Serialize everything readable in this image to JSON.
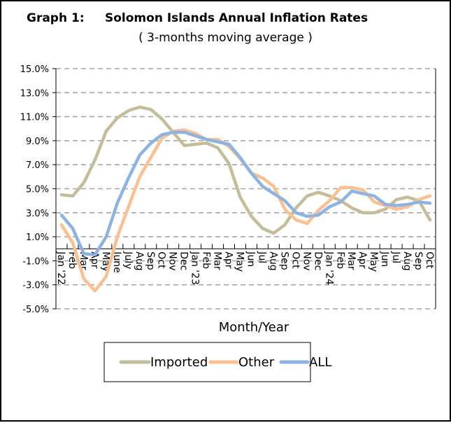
{
  "chart_data": {
    "type": "line",
    "title_prefix": "Graph 1:",
    "title": "Solomon Islands Annual Inflation Rates",
    "subtitle": "( 3-months moving average )",
    "xlabel": "Month/Year",
    "ylabel": "",
    "ylim": [
      -5,
      15
    ],
    "yticks": [
      15,
      13,
      11,
      9,
      7,
      5,
      3,
      1,
      -1,
      -3,
      -5
    ],
    "ytick_labels": [
      "15.0%",
      "13.0%",
      "11.0%",
      "9.0%",
      "7.0%",
      "5.0%",
      "3.0%",
      "1.0%",
      "-1.0%",
      "-3.0%",
      "-5.0%"
    ],
    "grid": "horizontal dashed",
    "legend_placement": "bottom",
    "categories": [
      "Jan '22",
      "Feb",
      "Mar",
      "Apr",
      "May",
      "June",
      "July",
      "Aug",
      "Sep",
      "Oct",
      "Nov",
      "Dec",
      "Jan '23",
      "Feb",
      "Mar",
      "Apr",
      "May",
      "Jun",
      "Jul",
      "Aug",
      "Sep",
      "Oct",
      "Nov",
      "Dec",
      "Jan '24",
      "Feb",
      "Mar",
      "Apr",
      "May",
      "Jun",
      "Jul",
      "Aug",
      "Sep",
      "Oct"
    ],
    "series": [
      {
        "name": "Imported",
        "color": "#c4bd97",
        "values": [
          4.5,
          4.4,
          5.5,
          7.4,
          9.8,
          10.9,
          11.5,
          11.8,
          11.6,
          10.8,
          9.7,
          8.6,
          8.7,
          8.8,
          8.4,
          7.1,
          4.3,
          2.7,
          1.7,
          1.3,
          2.0,
          3.4,
          4.4,
          4.7,
          4.4,
          4.0,
          3.4,
          3.0,
          3.0,
          3.3,
          4.1,
          4.3,
          4.0,
          2.4
        ]
      },
      {
        "name": "Other",
        "color": "#fac090",
        "values": [
          2.0,
          0.5,
          -2.5,
          -3.5,
          -2.3,
          1.0,
          3.5,
          6.0,
          7.6,
          9.2,
          9.8,
          9.9,
          9.6,
          9.1,
          9.1,
          8.5,
          7.5,
          6.3,
          5.9,
          5.2,
          3.3,
          2.4,
          2.1,
          3.2,
          4.0,
          5.1,
          5.1,
          4.9,
          3.9,
          3.6,
          3.3,
          3.5,
          4.1,
          4.4
        ]
      },
      {
        "name": "ALL",
        "color": "#8db3e2",
        "values": [
          2.8,
          1.7,
          -0.4,
          -0.5,
          1.0,
          3.8,
          5.9,
          7.8,
          8.8,
          9.5,
          9.7,
          9.7,
          9.4,
          9.1,
          8.9,
          8.7,
          7.6,
          6.3,
          5.2,
          4.6,
          4.0,
          3.0,
          2.7,
          2.8,
          3.5,
          3.9,
          4.8,
          4.6,
          4.4,
          3.7,
          3.6,
          3.7,
          3.9,
          3.8
        ]
      }
    ]
  }
}
